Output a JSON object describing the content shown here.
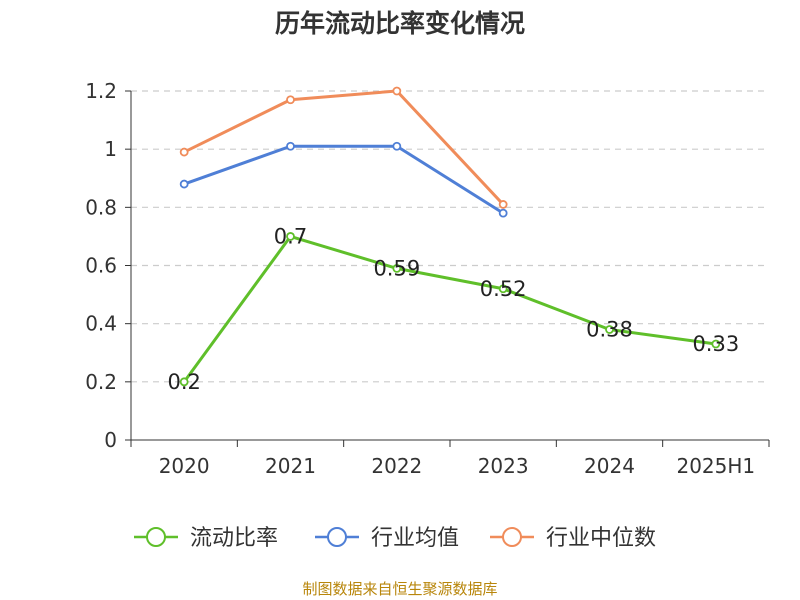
{
  "chart_data": {
    "type": "line",
    "title": "历年流动比率变化情况",
    "categories": [
      "2020",
      "2021",
      "2022",
      "2023",
      "2024",
      "2025H1"
    ],
    "ylim": [
      0,
      1.2
    ],
    "yticks": [
      "0",
      "0.2",
      "0.4",
      "0.6",
      "0.8",
      "1",
      "1.2"
    ],
    "grid": true,
    "legend_position": "bottom",
    "series": [
      {
        "name": "流动比率",
        "color": "#5fbf2a",
        "values": [
          0.2,
          0.7,
          0.59,
          0.52,
          0.38,
          0.33
        ],
        "labels": [
          "0.2",
          "0.7",
          "0.59",
          "0.52",
          "0.38",
          "0.33"
        ]
      },
      {
        "name": "行业均值",
        "color": "#4f7fd6",
        "values": [
          0.88,
          1.01,
          1.01,
          0.78,
          null,
          null
        ]
      },
      {
        "name": "行业中位数",
        "color": "#f08c5a",
        "values": [
          0.99,
          1.17,
          1.2,
          0.81,
          null,
          null
        ]
      }
    ]
  },
  "source": "制图数据来自恒生聚源数据库"
}
